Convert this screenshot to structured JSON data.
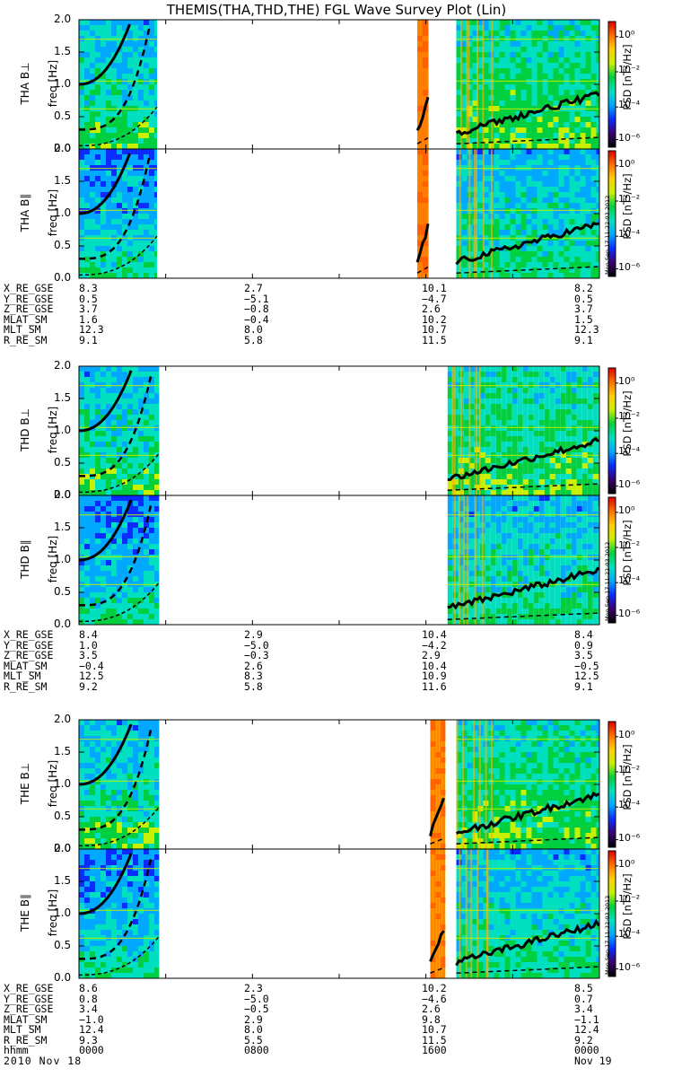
{
  "title": "THEMIS(THA,THD,THE) FGL Wave Survey Plot (Lin)",
  "colorbar": {
    "label": "PSD [nT²/Hz]",
    "ticks": [
      "10⁰",
      "10⁻²",
      "10⁻⁴",
      "10⁻⁶"
    ],
    "stamp": "Mon Sep 17 11:22:03 2012",
    "colors": [
      "#000000",
      "#3a0070",
      "#0a2cff",
      "#00a8ff",
      "#00e0c0",
      "#00d040",
      "#c8f000",
      "#ffd000",
      "#ff7000",
      "#e00000"
    ]
  },
  "y_ticks": [
    "2.0",
    "1.5",
    "1.0",
    "0.5",
    "0.0"
  ],
  "freq_label": "freq [Hz]",
  "chart_data": {
    "type": "heatmap",
    "xlabel": "hhmm",
    "x_ticks": [
      "0000",
      "0800",
      "1600",
      "0000"
    ],
    "x_dates": [
      "2010 Nov 18",
      "Nov 19"
    ],
    "x_range": [
      "2010-11-18 00:00",
      "2010-11-19 00:00"
    ],
    "ylim": [
      0,
      2.0
    ],
    "ylabel": "freq [Hz]",
    "zlabel": "PSD [nT²/Hz]",
    "z_scale": "log",
    "zlim_exp": [
      -6,
      1
    ],
    "probes": [
      {
        "id": "THA",
        "panels": [
          "THA B⊥",
          "THA B∥"
        ],
        "data_intervals_hours": [
          [
            0,
            3.6
          ],
          [
            15.6,
            16.1
          ],
          [
            17.4,
            24
          ]
        ],
        "ephemeris": {
          "labels": [
            "X_RE_GSE",
            "Y_RE_GSE",
            "Z_RE_GSE",
            "MLAT_SM",
            "MLT_SM",
            "R_RE_SM"
          ],
          "values": [
            [
              "8.3",
              "2.7",
              "10.1",
              "8.2"
            ],
            [
              "0.5",
              "−5.1",
              "−4.7",
              "0.5"
            ],
            [
              "3.7",
              "−0.8",
              "2.6",
              "3.7"
            ],
            [
              "1.6",
              "−0.4",
              "10.2",
              "1.5"
            ],
            [
              "12.3",
              "8.0",
              "10.7",
              "12.3"
            ],
            [
              "9.1",
              "5.8",
              "11.5",
              "9.1"
            ]
          ]
        }
      },
      {
        "id": "THD",
        "panels": [
          "THD B⊥",
          "THD B∥"
        ],
        "data_intervals_hours": [
          [
            0,
            3.7
          ],
          [
            17.0,
            24
          ]
        ],
        "ephemeris": {
          "labels": [
            "X_RE_GSE",
            "Y_RE_GSE",
            "Z_RE_GSE",
            "MLAT_SM",
            "MLT_SM",
            "R_RE_SM"
          ],
          "values": [
            [
              "8.4",
              "2.9",
              "10.4",
              "8.4"
            ],
            [
              "1.0",
              "−5.0",
              "−4.2",
              "0.9"
            ],
            [
              "3.5",
              "−0.3",
              "2.9",
              "3.5"
            ],
            [
              "−0.4",
              "2.6",
              "10.4",
              "−0.5"
            ],
            [
              "12.5",
              "8.3",
              "10.9",
              "12.5"
            ],
            [
              "9.2",
              "5.8",
              "11.6",
              "9.1"
            ]
          ]
        }
      },
      {
        "id": "THE",
        "panels": [
          "THE B⊥",
          "THE B∥"
        ],
        "data_intervals_hours": [
          [
            0,
            3.7
          ],
          [
            16.2,
            16.9
          ],
          [
            17.4,
            24
          ]
        ],
        "ephemeris": {
          "labels": [
            "X_RE_GSE",
            "Y_RE_GSE",
            "Z_RE_GSE",
            "MLAT_SM",
            "MLT_SM",
            "R_RE_SM"
          ],
          "values": [
            [
              "8.6",
              "2.3",
              "10.2",
              "8.5"
            ],
            [
              "0.8",
              "−5.0",
              "−4.6",
              "0.7"
            ],
            [
              "3.4",
              "−0.5",
              "2.6",
              "3.4"
            ],
            [
              "−1.0",
              "2.9",
              "9.8",
              "−1.1"
            ],
            [
              "12.4",
              "8.0",
              "10.7",
              "12.4"
            ],
            [
              "9.3",
              "5.5",
              "11.5",
              "9.2"
            ]
          ]
        }
      }
    ]
  }
}
